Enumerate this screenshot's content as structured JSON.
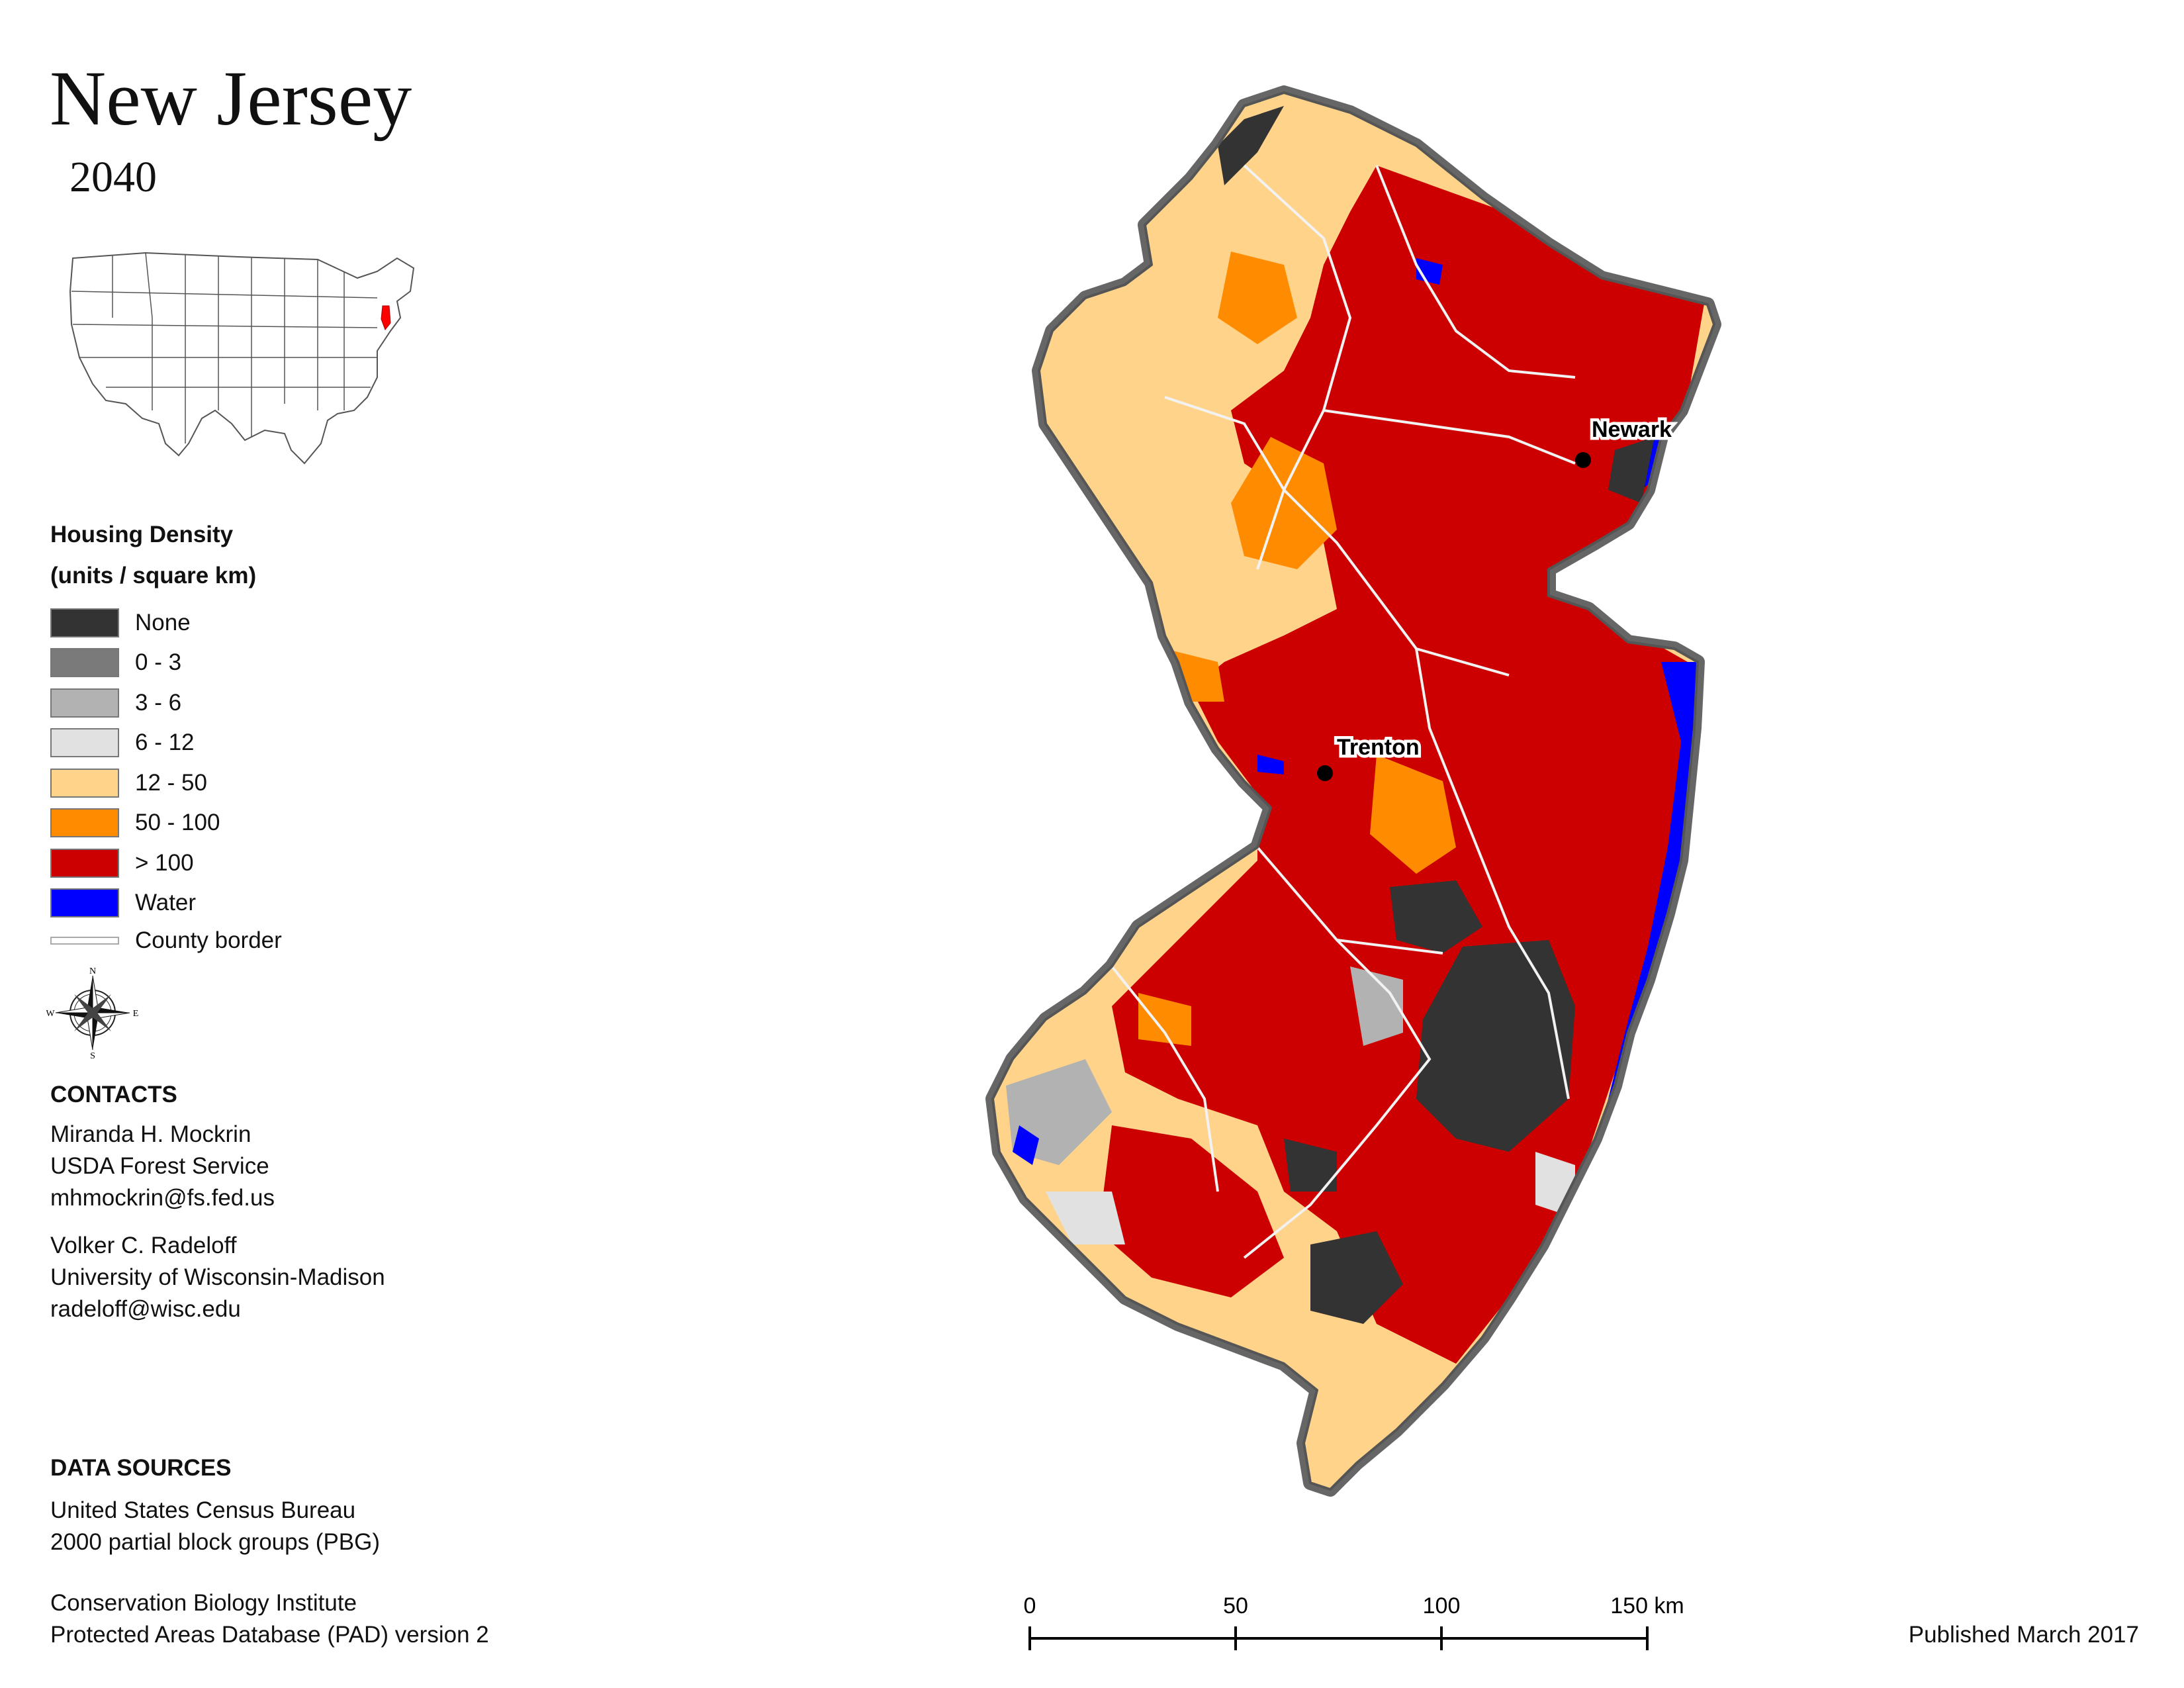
{
  "title": "New Jersey",
  "subtitle": "2040",
  "inset": {
    "description_icon": "usa-inset-map-icon",
    "highlight_color": "#ff0000"
  },
  "legend": {
    "title_line1": "Housing Density",
    "title_line2": "(units / square km)",
    "items": [
      {
        "label": "None",
        "color": "#333333"
      },
      {
        "label": "0 - 3",
        "color": "#7a7a7a"
      },
      {
        "label": "3 - 6",
        "color": "#b2b2b2"
      },
      {
        "label": "6 - 12",
        "color": "#e1e1e1"
      },
      {
        "label": "12 - 50",
        "color": "#ffd38a"
      },
      {
        "label": "50 - 100",
        "color": "#ff8c00"
      },
      {
        "label": "> 100",
        "color": "#cc0000"
      },
      {
        "label": "Water",
        "color": "#0000ff"
      }
    ],
    "border_label": "County border"
  },
  "compass": {
    "n": "N",
    "s": "S",
    "e": "E",
    "w": "W"
  },
  "contacts": {
    "heading": "CONTACTS",
    "person1": {
      "name": "Miranda H. Mockrin",
      "org": "USDA Forest Service",
      "email": "mhmockrin@fs.fed.us"
    },
    "person2": {
      "name": "Volker C. Radeloff",
      "org": "University of Wisconsin-Madison",
      "email": "radeloff@wisc.edu"
    }
  },
  "sources": {
    "heading": "DATA SOURCES",
    "s1_line1": "United States Census Bureau",
    "s1_line2": "2000 partial block groups (PBG)",
    "s2_line1": "Conservation Biology Institute",
    "s2_line2": "Protected Areas Database (PAD) version 2"
  },
  "map": {
    "cities": [
      {
        "name": "Newark"
      },
      {
        "name": "Trenton"
      }
    ]
  },
  "scale": {
    "t0": "0",
    "t1": "50",
    "t2": "100",
    "t3": "150 km"
  },
  "published": "Published March 2017"
}
